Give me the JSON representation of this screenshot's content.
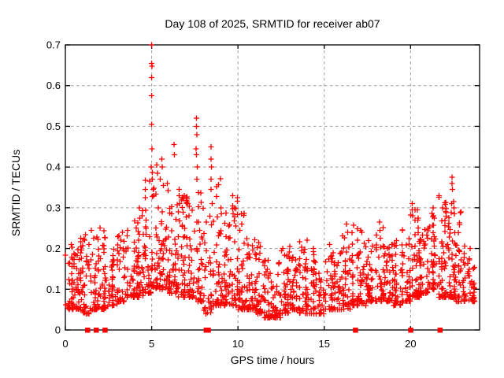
{
  "chart_data": {
    "type": "scatter",
    "title": "Day 108 of 2025, SRMTID for receiver ab07",
    "xlabel": "GPS time / hours",
    "ylabel": "SRMTID / TECUs",
    "xlim": [
      0,
      24
    ],
    "ylim": [
      0,
      0.7
    ],
    "legend": "none",
    "marker": "plus",
    "zero_marker": "filled-square",
    "colors": {
      "marker": "#ff0000",
      "grid": "#9e9e9e",
      "axis": "#000000",
      "text": "#000000",
      "background": "#ffffff"
    },
    "x_ticks": [
      {
        "v": 0,
        "label": "0"
      },
      {
        "v": 5,
        "label": "5"
      },
      {
        "v": 10,
        "label": "10"
      },
      {
        "v": 15,
        "label": "15"
      },
      {
        "v": 20,
        "label": "20"
      }
    ],
    "y_ticks": [
      {
        "v": 0.0,
        "label": "0"
      },
      {
        "v": 0.1,
        "label": "0.1"
      },
      {
        "v": 0.2,
        "label": "0.2"
      },
      {
        "v": 0.3,
        "label": "0.3"
      },
      {
        "v": 0.4,
        "label": "0.4"
      },
      {
        "v": 0.5,
        "label": "0.5"
      },
      {
        "v": 0.6,
        "label": "0.6"
      },
      {
        "v": 0.7,
        "label": "0.7"
      }
    ],
    "grid": {
      "style": "dashed",
      "x_values": [
        5,
        10,
        15,
        20
      ],
      "y_values": [
        0.1,
        0.2,
        0.3,
        0.4,
        0.5,
        0.6
      ]
    },
    "notable_points": [
      [
        5.0,
        0.7
      ],
      [
        5.0,
        0.655
      ],
      [
        5.02,
        0.648
      ],
      [
        5.0,
        0.62
      ],
      [
        4.99,
        0.575
      ],
      [
        5.0,
        0.505
      ],
      [
        5.01,
        0.445
      ],
      [
        4.98,
        0.4
      ],
      [
        5.05,
        0.37
      ],
      [
        5.08,
        0.345
      ],
      [
        5.1,
        0.33
      ],
      [
        4.1,
        0.25
      ],
      [
        4.3,
        0.3
      ],
      [
        4.32,
        0.275
      ],
      [
        5.3,
        0.405
      ],
      [
        5.33,
        0.385
      ],
      [
        5.5,
        0.37
      ],
      [
        5.6,
        0.42
      ],
      [
        5.62,
        0.4
      ],
      [
        5.9,
        0.36
      ],
      [
        6.3,
        0.455
      ],
      [
        6.32,
        0.43
      ],
      [
        6.6,
        0.345
      ],
      [
        6.62,
        0.31
      ],
      [
        6.9,
        0.33
      ],
      [
        7.1,
        0.31
      ],
      [
        7.6,
        0.52
      ],
      [
        7.6,
        0.5
      ],
      [
        7.62,
        0.48
      ],
      [
        7.58,
        0.445
      ],
      [
        7.6,
        0.43
      ],
      [
        7.65,
        0.4
      ],
      [
        7.63,
        0.37
      ],
      [
        8.45,
        0.45
      ],
      [
        8.45,
        0.42
      ],
      [
        8.47,
        0.4
      ],
      [
        8.43,
        0.37
      ],
      [
        8.45,
        0.345
      ],
      [
        8.5,
        0.31
      ],
      [
        9.0,
        0.3
      ],
      [
        9.03,
        0.285
      ],
      [
        9.7,
        0.33
      ],
      [
        9.7,
        0.305
      ],
      [
        9.72,
        0.285
      ],
      [
        10.2,
        0.285
      ],
      [
        10.22,
        0.26
      ],
      [
        11.2,
        0.215
      ],
      [
        12.6,
        0.2
      ],
      [
        13.0,
        0.205
      ],
      [
        14.0,
        0.22
      ],
      [
        15.3,
        0.21
      ],
      [
        16.3,
        0.26
      ],
      [
        16.35,
        0.24
      ],
      [
        17.1,
        0.245
      ],
      [
        18.2,
        0.265
      ],
      [
        18.22,
        0.245
      ],
      [
        18.25,
        0.225
      ],
      [
        20.1,
        0.31
      ],
      [
        20.1,
        0.295
      ],
      [
        20.13,
        0.28
      ],
      [
        20.4,
        0.295
      ],
      [
        20.42,
        0.27
      ],
      [
        20.45,
        0.25
      ],
      [
        21.3,
        0.3
      ],
      [
        21.33,
        0.28
      ],
      [
        22.4,
        0.375
      ],
      [
        22.4,
        0.36
      ],
      [
        22.42,
        0.345
      ],
      [
        22.38,
        0.31
      ],
      [
        22.5,
        0.315
      ],
      [
        22.52,
        0.3
      ],
      [
        22.55,
        0.285
      ],
      [
        0.35,
        0.21
      ],
      [
        0.9,
        0.225
      ],
      [
        1.5,
        0.245
      ],
      [
        2.0,
        0.25
      ],
      [
        3.3,
        0.24
      ],
      [
        3.6,
        0.245
      ]
    ],
    "zero_time_marks": [
      1.28,
      1.78,
      2.29,
      8.15,
      8.27,
      16.8,
      20.0,
      21.7
    ],
    "baseline_cloud": {
      "comment": "dense scatter band; bins of [min,max,count] per 0.5 h starting at x_start",
      "bin_width": 0.5,
      "x_start": 0.0,
      "x_end": 23.7,
      "bins": [
        [
          0.05,
          0.21,
          40
        ],
        [
          0.05,
          0.22,
          40
        ],
        [
          0.04,
          0.24,
          36
        ],
        [
          0.05,
          0.25,
          36
        ],
        [
          0.05,
          0.25,
          36
        ],
        [
          0.06,
          0.2,
          36
        ],
        [
          0.07,
          0.24,
          36
        ],
        [
          0.08,
          0.25,
          36
        ],
        [
          0.08,
          0.3,
          40
        ],
        [
          0.09,
          0.37,
          40
        ],
        [
          0.1,
          0.4,
          40
        ],
        [
          0.1,
          0.38,
          40
        ],
        [
          0.09,
          0.33,
          40
        ],
        [
          0.08,
          0.35,
          40
        ],
        [
          0.08,
          0.33,
          40
        ],
        [
          0.07,
          0.36,
          40
        ],
        [
          0.04,
          0.3,
          32
        ],
        [
          0.06,
          0.38,
          40
        ],
        [
          0.06,
          0.3,
          40
        ],
        [
          0.06,
          0.33,
          40
        ],
        [
          0.05,
          0.29,
          40
        ],
        [
          0.05,
          0.23,
          40
        ],
        [
          0.04,
          0.215,
          38
        ],
        [
          0.03,
          0.18,
          38
        ],
        [
          0.03,
          0.18,
          38
        ],
        [
          0.04,
          0.2,
          38
        ],
        [
          0.05,
          0.2,
          38
        ],
        [
          0.04,
          0.22,
          38
        ],
        [
          0.04,
          0.22,
          38
        ],
        [
          0.04,
          0.15,
          30
        ],
        [
          0.05,
          0.21,
          30
        ],
        [
          0.05,
          0.2,
          30
        ],
        [
          0.05,
          0.24,
          38
        ],
        [
          0.06,
          0.26,
          38
        ],
        [
          0.06,
          0.25,
          38
        ],
        [
          0.07,
          0.22,
          38
        ],
        [
          0.07,
          0.27,
          38
        ],
        [
          0.07,
          0.21,
          38
        ],
        [
          0.06,
          0.22,
          38
        ],
        [
          0.07,
          0.26,
          38
        ],
        [
          0.08,
          0.31,
          44
        ],
        [
          0.09,
          0.25,
          44
        ],
        [
          0.1,
          0.3,
          44
        ],
        [
          0.08,
          0.33,
          44
        ],
        [
          0.08,
          0.32,
          44
        ],
        [
          0.07,
          0.3,
          44
        ],
        [
          0.07,
          0.21,
          34
        ],
        [
          0.07,
          0.18,
          26
        ]
      ]
    }
  }
}
